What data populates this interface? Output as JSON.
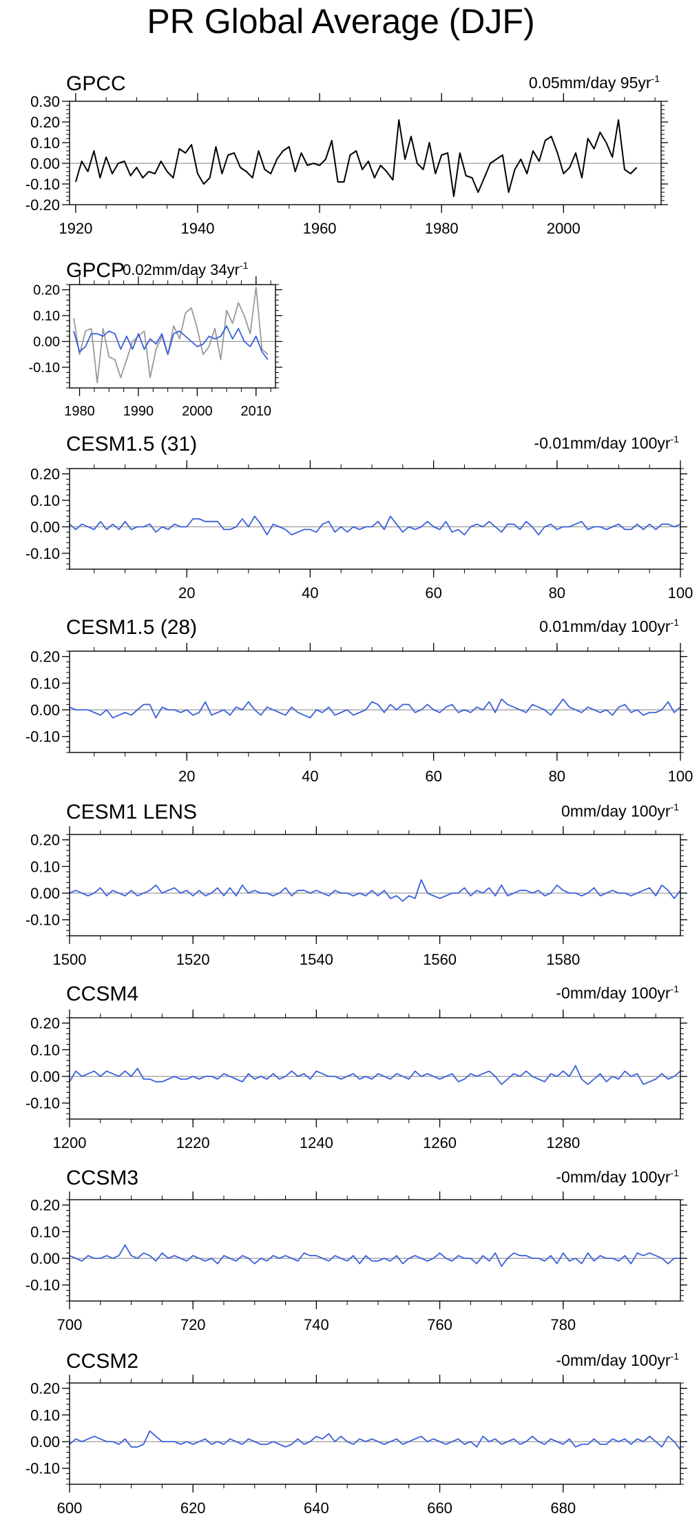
{
  "title": "PR Global Average (DJF)",
  "colors": {
    "obs_series": "#000000",
    "gpcp_overlay": "#999999",
    "model_series": "#3a5fd9",
    "zero_line": "#999999",
    "frame": "#000000"
  },
  "chart_data": [
    {
      "type": "line",
      "id": "gpcc",
      "panel_title": "GPCC",
      "trend_label": "0.05mm/day 95yr",
      "trend_exp": "-1",
      "x_start": 1920,
      "xlim": [
        1919,
        2016
      ],
      "ylim": [
        -0.2,
        0.3
      ],
      "yticks": [
        0.3,
        0.2,
        0.1,
        0.0,
        -0.1,
        -0.2
      ],
      "ytick_labels": [
        "0.30",
        "0.20",
        "0.10",
        "0.00",
        "-0.10",
        "-0.20"
      ],
      "xticks": [
        1920,
        1940,
        1960,
        1980,
        2000
      ],
      "series": [
        {
          "name": "GPCC",
          "color": "#000000",
          "values": [
            -0.09,
            0.01,
            -0.04,
            0.06,
            -0.07,
            0.03,
            -0.05,
            0.0,
            0.01,
            -0.06,
            -0.02,
            -0.07,
            -0.04,
            -0.05,
            0.01,
            -0.04,
            -0.07,
            0.07,
            0.05,
            0.09,
            -0.05,
            -0.1,
            -0.07,
            0.08,
            -0.05,
            0.04,
            0.05,
            -0.02,
            -0.04,
            -0.07,
            0.06,
            -0.03,
            -0.05,
            0.02,
            0.06,
            0.08,
            -0.04,
            0.05,
            -0.01,
            0.0,
            -0.01,
            0.02,
            0.11,
            -0.09,
            -0.09,
            0.04,
            0.06,
            -0.03,
            0.01,
            -0.07,
            -0.01,
            -0.04,
            -0.08,
            0.21,
            0.02,
            0.13,
            0.0,
            -0.03,
            0.1,
            -0.05,
            0.04,
            0.05,
            -0.16,
            0.05,
            -0.06,
            -0.07,
            -0.14,
            -0.07,
            0.0,
            0.02,
            0.04,
            -0.14,
            -0.03,
            0.02,
            -0.05,
            0.06,
            0.01,
            0.11,
            0.13,
            0.05,
            -0.05,
            -0.02,
            0.05,
            -0.07,
            0.12,
            0.07,
            0.15,
            0.1,
            0.03,
            0.21,
            -0.03,
            -0.05,
            -0.02
          ]
        }
      ]
    },
    {
      "type": "line",
      "id": "gpcp",
      "panel_title": "GPCP",
      "trend_label": "0.02mm/day 34yr",
      "trend_exp": "-1",
      "x_start": 1979,
      "xlim": [
        1978.3,
        2013.3
      ],
      "ylim": [
        -0.18,
        0.22
      ],
      "yticks": [
        0.2,
        0.1,
        0.0,
        -0.1
      ],
      "ytick_labels": [
        "0.20",
        "0.10",
        "0.00",
        "-0.10"
      ],
      "xticks": [
        1980,
        1990,
        2000,
        2010
      ],
      "series": [
        {
          "name": "GPCC overlay",
          "color": "#999999",
          "values": [
            0.09,
            -0.05,
            0.04,
            0.05,
            -0.16,
            0.05,
            -0.06,
            -0.07,
            -0.14,
            -0.07,
            0.0,
            0.02,
            0.04,
            -0.14,
            -0.03,
            0.02,
            -0.05,
            0.06,
            0.01,
            0.11,
            0.13,
            0.05,
            -0.05,
            -0.02,
            0.05,
            -0.07,
            0.12,
            0.07,
            0.15,
            0.1,
            0.03,
            0.21,
            -0.03,
            -0.05
          ]
        },
        {
          "name": "GPCP",
          "color": "#3a5fd9",
          "values": [
            0.04,
            -0.04,
            -0.02,
            0.03,
            0.03,
            0.02,
            0.04,
            0.03,
            -0.03,
            0.02,
            -0.03,
            0.03,
            -0.03,
            0.01,
            -0.01,
            0.03,
            -0.05,
            0.03,
            0.04,
            0.02,
            0.0,
            -0.02,
            -0.01,
            0.02,
            0.01,
            0.02,
            0.06,
            0.01,
            0.05,
            0.0,
            -0.02,
            0.02,
            -0.04,
            -0.07
          ]
        }
      ]
    },
    {
      "type": "line",
      "id": "cesm15-31",
      "panel_title": "CESM1.5 (31)",
      "trend_label": "-0.01mm/day 100yr",
      "trend_exp": "-1",
      "x_start": 1,
      "xlim": [
        1,
        100
      ],
      "ylim": [
        -0.16,
        0.22
      ],
      "yticks": [
        0.2,
        0.1,
        0.0,
        -0.1
      ],
      "ytick_labels": [
        "0.20",
        "0.10",
        "0.00",
        "-0.10"
      ],
      "xticks": [
        20,
        40,
        60,
        80,
        100
      ],
      "series": [
        {
          "name": "CESM1.5 (31)",
          "color": "#3a5fd9",
          "values": [
            0.01,
            -0.01,
            0.01,
            0.0,
            -0.01,
            0.02,
            -0.01,
            0.01,
            -0.01,
            0.02,
            -0.01,
            0.0,
            0.0,
            0.01,
            -0.02,
            0.0,
            -0.01,
            0.01,
            0.0,
            0.0,
            0.03,
            0.03,
            0.02,
            0.02,
            0.02,
            -0.01,
            -0.01,
            0.0,
            0.03,
            0.0,
            0.04,
            0.01,
            -0.03,
            0.01,
            0.0,
            -0.01,
            -0.03,
            -0.02,
            -0.01,
            -0.01,
            -0.02,
            0.01,
            0.02,
            -0.02,
            0.0,
            -0.02,
            0.0,
            -0.01,
            0.0,
            0.0,
            0.02,
            -0.01,
            0.04,
            0.01,
            -0.02,
            0.0,
            -0.01,
            0.0,
            0.02,
            0.0,
            -0.01,
            0.02,
            -0.02,
            -0.01,
            -0.03,
            0.0,
            0.01,
            0.0,
            0.02,
            0.0,
            -0.02,
            0.01,
            0.01,
            -0.01,
            0.02,
            0.0,
            -0.03,
            0.0,
            0.01,
            -0.01,
            0.0,
            0.0,
            0.01,
            0.02,
            -0.01,
            0.0,
            0.0,
            -0.01,
            0.0,
            0.01,
            -0.01,
            -0.01,
            0.01,
            -0.01,
            0.01,
            -0.01,
            0.01,
            0.01,
            0.0,
            0.01
          ]
        }
      ]
    },
    {
      "type": "line",
      "id": "cesm15-28",
      "panel_title": "CESM1.5 (28)",
      "trend_label": "0.01mm/day 100yr",
      "trend_exp": "-1",
      "x_start": 1,
      "xlim": [
        1,
        100
      ],
      "ylim": [
        -0.16,
        0.22
      ],
      "yticks": [
        0.2,
        0.1,
        0.0,
        -0.1
      ],
      "ytick_labels": [
        "0.20",
        "0.10",
        "0.00",
        "-0.10"
      ],
      "xticks": [
        20,
        40,
        60,
        80,
        100
      ],
      "series": [
        {
          "name": "CESM1.5 (28)",
          "color": "#3a5fd9",
          "values": [
            0.01,
            0.0,
            0.0,
            0.0,
            -0.01,
            -0.02,
            0.0,
            -0.03,
            -0.02,
            -0.01,
            -0.02,
            0.0,
            0.02,
            0.02,
            -0.03,
            0.01,
            0.0,
            0.0,
            -0.01,
            0.0,
            -0.02,
            -0.01,
            0.03,
            -0.02,
            -0.01,
            0.0,
            -0.02,
            0.01,
            0.0,
            0.03,
            0.0,
            -0.02,
            0.01,
            0.0,
            -0.01,
            -0.02,
            0.01,
            -0.01,
            -0.02,
            -0.03,
            0.0,
            -0.01,
            0.01,
            -0.02,
            -0.01,
            0.0,
            -0.02,
            -0.01,
            0.0,
            0.03,
            0.02,
            -0.01,
            0.02,
            0.0,
            0.02,
            0.02,
            -0.01,
            0.0,
            0.02,
            0.0,
            -0.01,
            0.01,
            0.02,
            -0.01,
            0.0,
            -0.01,
            0.01,
            0.0,
            0.03,
            -0.01,
            0.04,
            0.02,
            0.01,
            0.0,
            -0.01,
            0.02,
            0.01,
            0.0,
            -0.02,
            0.01,
            0.04,
            0.01,
            0.0,
            -0.01,
            0.01,
            0.0,
            -0.01,
            0.0,
            -0.02,
            0.01,
            0.02,
            -0.01,
            0.0,
            -0.02,
            -0.01,
            -0.01,
            0.0,
            0.03,
            -0.01,
            0.01
          ]
        }
      ]
    },
    {
      "type": "line",
      "id": "cesm1-lens",
      "panel_title": "CESM1 LENS",
      "trend_label": "0mm/day 100yr",
      "trend_exp": "-1",
      "x_start": 1500,
      "xlim": [
        1500,
        1599
      ],
      "ylim": [
        -0.16,
        0.22
      ],
      "yticks": [
        0.2,
        0.1,
        0.0,
        -0.1
      ],
      "ytick_labels": [
        "0.20",
        "0.10",
        "0.00",
        "-0.10"
      ],
      "xticks": [
        1500,
        1520,
        1540,
        1560,
        1580
      ],
      "series": [
        {
          "name": "CESM1 LENS",
          "color": "#3a5fd9",
          "values": [
            0.0,
            0.01,
            0.0,
            -0.01,
            0.0,
            0.02,
            -0.01,
            0.01,
            0.0,
            -0.01,
            0.01,
            -0.01,
            0.0,
            0.01,
            0.03,
            0.0,
            0.01,
            0.02,
            0.0,
            0.01,
            -0.01,
            0.01,
            -0.01,
            0.0,
            0.02,
            -0.01,
            0.02,
            -0.01,
            0.03,
            0.0,
            0.01,
            0.0,
            0.0,
            -0.01,
            0.0,
            0.02,
            -0.01,
            0.01,
            0.01,
            0.0,
            0.01,
            0.0,
            -0.01,
            0.01,
            0.0,
            0.0,
            -0.01,
            0.0,
            -0.01,
            0.01,
            -0.01,
            0.01,
            -0.02,
            -0.01,
            -0.03,
            -0.01,
            -0.02,
            0.05,
            0.0,
            -0.01,
            -0.02,
            -0.01,
            0.0,
            0.0,
            0.02,
            -0.01,
            0.01,
            0.0,
            0.02,
            -0.01,
            0.03,
            -0.01,
            0.0,
            0.01,
            0.01,
            0.0,
            0.01,
            -0.01,
            0.0,
            0.03,
            0.01,
            0.0,
            0.0,
            -0.01,
            0.0,
            0.02,
            -0.01,
            0.0,
            0.01,
            0.0,
            0.0,
            -0.01,
            0.0,
            0.01,
            0.02,
            -0.01,
            0.03,
            0.01,
            -0.02,
            0.01
          ]
        }
      ]
    },
    {
      "type": "line",
      "id": "ccsm4",
      "panel_title": "CCSM4",
      "trend_label": "-0mm/day 100yr",
      "trend_exp": "-1",
      "x_start": 1200,
      "xlim": [
        1200,
        1299
      ],
      "ylim": [
        -0.16,
        0.22
      ],
      "yticks": [
        0.2,
        0.1,
        0.0,
        -0.1
      ],
      "ytick_labels": [
        "0.20",
        "0.10",
        "0.00",
        "-0.10"
      ],
      "xticks": [
        1200,
        1220,
        1240,
        1260,
        1280
      ],
      "series": [
        {
          "name": "CCSM4",
          "color": "#3a5fd9",
          "values": [
            -0.02,
            0.02,
            0.0,
            0.01,
            0.02,
            0.0,
            0.02,
            0.01,
            0.0,
            0.02,
            0.0,
            0.03,
            -0.01,
            -0.01,
            -0.02,
            -0.02,
            -0.01,
            0.0,
            -0.01,
            -0.01,
            0.0,
            -0.01,
            0.0,
            0.0,
            -0.01,
            0.01,
            0.0,
            -0.01,
            -0.02,
            0.01,
            -0.01,
            0.0,
            -0.01,
            0.01,
            -0.01,
            0.0,
            0.02,
            0.0,
            0.01,
            -0.01,
            0.02,
            0.01,
            0.0,
            0.0,
            -0.01,
            0.0,
            0.01,
            -0.01,
            0.0,
            -0.01,
            0.01,
            0.0,
            -0.01,
            0.01,
            0.0,
            -0.01,
            0.02,
            0.0,
            0.01,
            0.0,
            -0.01,
            0.0,
            0.01,
            -0.02,
            -0.01,
            0.01,
            0.0,
            0.01,
            0.02,
            0.0,
            -0.03,
            -0.01,
            0.01,
            0.0,
            0.02,
            0.0,
            -0.01,
            -0.02,
            0.01,
            0.0,
            0.02,
            0.0,
            0.04,
            -0.01,
            -0.03,
            -0.01,
            0.01,
            -0.02,
            0.0,
            -0.01,
            0.02,
            0.0,
            0.01,
            -0.03,
            -0.02,
            -0.01,
            0.01,
            -0.01,
            0.0,
            0.02
          ]
        }
      ]
    },
    {
      "type": "line",
      "id": "ccsm3",
      "panel_title": "CCSM3",
      "trend_label": "-0mm/day 100yr",
      "trend_exp": "-1",
      "x_start": 700,
      "xlim": [
        700,
        799
      ],
      "ylim": [
        -0.16,
        0.22
      ],
      "yticks": [
        0.2,
        0.1,
        0.0,
        -0.1
      ],
      "ytick_labels": [
        "0.20",
        "0.10",
        "0.00",
        "-0.10"
      ],
      "xticks": [
        700,
        720,
        740,
        760,
        780
      ],
      "series": [
        {
          "name": "CCSM3",
          "color": "#3a5fd9",
          "values": [
            0.01,
            0.0,
            -0.01,
            0.01,
            0.0,
            0.0,
            0.01,
            0.0,
            0.01,
            0.05,
            0.01,
            0.0,
            0.02,
            0.01,
            -0.01,
            0.02,
            0.0,
            0.01,
            0.0,
            -0.01,
            0.01,
            0.0,
            -0.01,
            0.0,
            -0.02,
            0.01,
            0.0,
            -0.01,
            0.01,
            0.0,
            -0.02,
            0.0,
            -0.01,
            0.01,
            0.0,
            0.01,
            0.0,
            -0.01,
            0.02,
            0.01,
            0.01,
            0.0,
            -0.01,
            0.01,
            0.0,
            -0.01,
            0.01,
            -0.02,
            0.01,
            -0.01,
            -0.01,
            0.0,
            -0.01,
            0.01,
            -0.02,
            0.0,
            0.01,
            0.0,
            -0.01,
            0.0,
            0.02,
            0.0,
            -0.01,
            0.01,
            0.0,
            0.0,
            -0.02,
            0.01,
            -0.01,
            0.02,
            -0.03,
            0.0,
            0.02,
            0.01,
            0.01,
            0.0,
            0.0,
            -0.01,
            0.01,
            -0.02,
            0.02,
            -0.01,
            0.0,
            -0.02,
            0.02,
            -0.01,
            0.01,
            0.0,
            0.0,
            -0.01,
            0.01,
            -0.02,
            0.02,
            0.01,
            0.02,
            0.01,
            0.0,
            -0.02,
            0.0,
            0.0
          ]
        }
      ]
    },
    {
      "type": "line",
      "id": "ccsm2",
      "panel_title": "CCSM2",
      "trend_label": "-0mm/day 100yr",
      "trend_exp": "-1",
      "x_start": 600,
      "xlim": [
        600,
        699
      ],
      "ylim": [
        -0.16,
        0.22
      ],
      "yticks": [
        0.2,
        0.1,
        0.0,
        -0.1
      ],
      "ytick_labels": [
        "0.20",
        "0.10",
        "0.00",
        "-0.10"
      ],
      "xticks": [
        600,
        620,
        640,
        660,
        680
      ],
      "series": [
        {
          "name": "CCSM2",
          "color": "#3a5fd9",
          "values": [
            -0.01,
            0.01,
            0.0,
            0.01,
            0.02,
            0.01,
            0.0,
            0.0,
            -0.01,
            0.01,
            -0.02,
            -0.02,
            -0.01,
            0.04,
            0.02,
            0.0,
            0.0,
            0.0,
            -0.01,
            0.0,
            -0.01,
            0.0,
            0.01,
            -0.01,
            0.0,
            -0.01,
            0.01,
            0.0,
            -0.01,
            0.01,
            0.0,
            -0.01,
            -0.01,
            0.0,
            -0.01,
            -0.02,
            -0.01,
            0.01,
            -0.01,
            0.0,
            0.02,
            0.01,
            0.03,
            0.0,
            0.02,
            0.0,
            -0.01,
            0.01,
            0.0,
            0.01,
            0.0,
            -0.01,
            0.0,
            0.01,
            -0.01,
            0.0,
            0.01,
            0.02,
            0.0,
            0.01,
            0.0,
            -0.01,
            0.0,
            0.01,
            -0.01,
            0.0,
            -0.02,
            0.02,
            0.0,
            0.01,
            -0.01,
            0.0,
            0.01,
            -0.01,
            0.0,
            0.02,
            0.0,
            -0.01,
            0.01,
            0.0,
            -0.01,
            0.01,
            -0.02,
            -0.01,
            -0.01,
            0.01,
            -0.01,
            -0.01,
            0.01,
            0.0,
            0.01,
            -0.01,
            0.01,
            0.0,
            0.02,
            0.0,
            -0.02,
            0.02,
            0.0,
            -0.03
          ]
        }
      ]
    }
  ]
}
